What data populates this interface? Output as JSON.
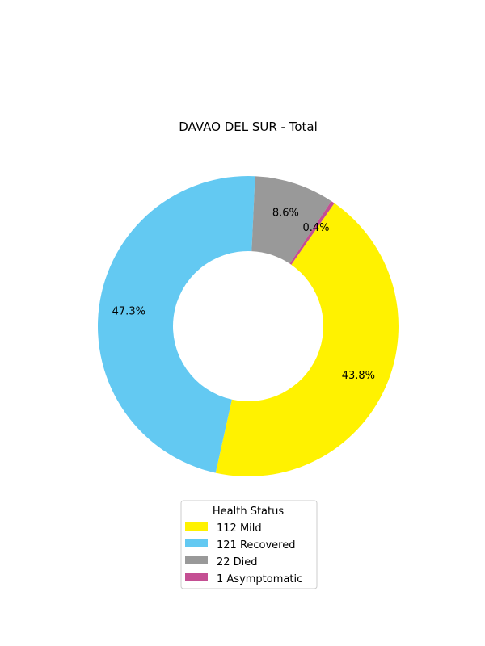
{
  "chart_data": {
    "type": "pie",
    "variant": "donut",
    "title": "DAVAO DEL SUR - Total",
    "categories": [
      "Mild",
      "Recovered",
      "Died",
      "Asymptomatic"
    ],
    "values": [
      112,
      121,
      22,
      1
    ],
    "percent_labels": [
      "43.8%",
      "47.3%",
      "8.6%",
      "0.4%"
    ],
    "colors": [
      "#fff200",
      "#63c9f2",
      "#999999",
      "#c44f93"
    ],
    "legend": {
      "title": "Health Status",
      "entries": [
        "112  Mild",
        "121  Recovered",
        "22  Died",
        "1  Asymptomatic"
      ],
      "placement": "bottom-center"
    },
    "start_angle_deg": -55,
    "direction": "clockwise"
  }
}
